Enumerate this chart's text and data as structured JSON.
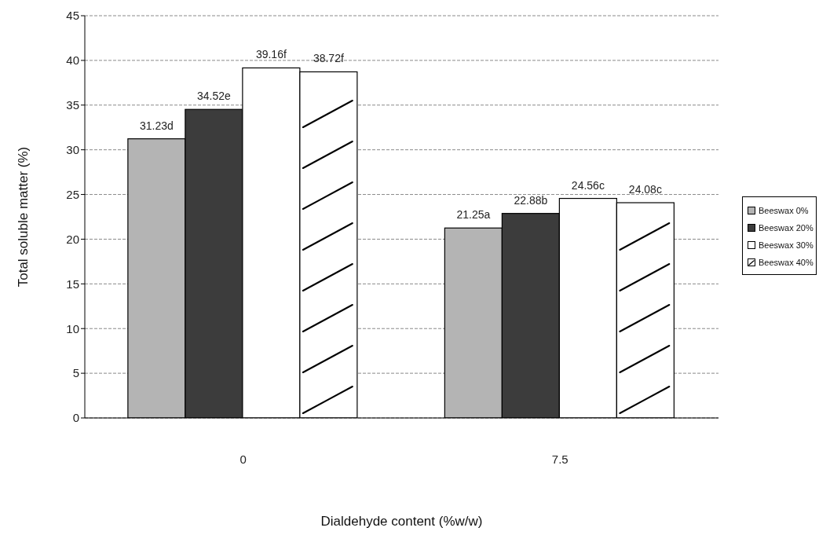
{
  "chart_data": {
    "type": "bar",
    "categories": [
      "0",
      "7.5"
    ],
    "series": [
      {
        "name": "Beeswax 0%",
        "color": "#b4b4b4",
        "values": [
          31.23,
          21.25
        ],
        "value_labels": [
          "31.23d",
          "21.25a"
        ]
      },
      {
        "name": "Beeswax 20%",
        "color": "#3c3c3c",
        "values": [
          34.52,
          22.88
        ],
        "value_labels": [
          "34.52e",
          "22.88b"
        ]
      },
      {
        "name": "Beeswax 30%",
        "color": "#ffffff",
        "values": [
          39.16,
          24.56
        ],
        "value_labels": [
          "39.16f",
          "24.56c"
        ]
      },
      {
        "name": "Beeswax 40%",
        "color": "#ffffff",
        "values": [
          38.72,
          24.08
        ],
        "value_labels": [
          "38.72f",
          "24.08c"
        ]
      }
    ],
    "xlabel": "Dialdehyde content (%w/w)",
    "ylabel": "Total soluble matter (%)",
    "ylim": [
      0,
      45
    ],
    "yticks": [
      0,
      5,
      10,
      15,
      20,
      25,
      30,
      35,
      40,
      45
    ],
    "grid": "y",
    "legend": "right"
  }
}
